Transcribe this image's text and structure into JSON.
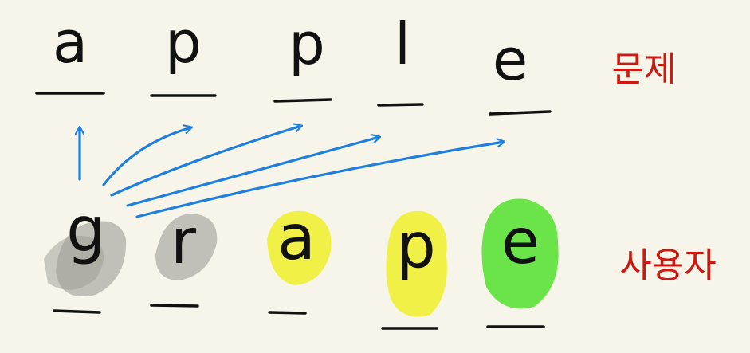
{
  "problem": {
    "label": "문제",
    "letters": [
      "a",
      "p",
      "p",
      "l",
      "e"
    ]
  },
  "user": {
    "label": "사용자",
    "letters": [
      "g",
      "r",
      "a",
      "p",
      "e"
    ],
    "highlights": [
      "gray",
      "gray",
      "yellow",
      "yellow",
      "green"
    ]
  },
  "colors": {
    "background": "#f7f5ea",
    "ink": "#111111",
    "label_red": "#cc1a10",
    "arrow_blue": "#1f7fe0",
    "gray_mark": "#9c9c96",
    "yellow_mark": "#f0ee2a",
    "green_mark": "#52e02e"
  },
  "icons": {
    "arrow": "arrow-right-icon"
  }
}
